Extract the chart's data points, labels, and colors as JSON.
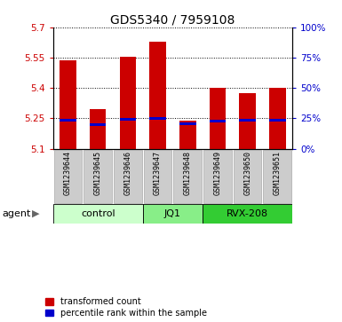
{
  "title": "GDS5340 / 7959108",
  "samples": [
    "GSM1239644",
    "GSM1239645",
    "GSM1239646",
    "GSM1239647",
    "GSM1239648",
    "GSM1239649",
    "GSM1239650",
    "GSM1239651"
  ],
  "bar_values": [
    5.535,
    5.295,
    5.555,
    5.63,
    5.24,
    5.4,
    5.375,
    5.4
  ],
  "bar_bottom": 5.1,
  "percentile_values": [
    5.24,
    5.22,
    5.245,
    5.25,
    5.225,
    5.235,
    5.24,
    5.24
  ],
  "ylim": [
    5.1,
    5.7
  ],
  "yticks_left": [
    5.1,
    5.25,
    5.4,
    5.55,
    5.7
  ],
  "yticks_right_vals": [
    0,
    25,
    50,
    75,
    100
  ],
  "yticks_right_pos": [
    5.1,
    5.25,
    5.4,
    5.55,
    5.7
  ],
  "bar_color": "#cc0000",
  "percentile_color": "#0000cc",
  "bar_width": 0.55,
  "groups": [
    {
      "label": "control",
      "indices": [
        0,
        1,
        2
      ],
      "color": "#ccffcc"
    },
    {
      "label": "JQ1",
      "indices": [
        3,
        4
      ],
      "color": "#88ee88"
    },
    {
      "label": "RVX-208",
      "indices": [
        5,
        6,
        7
      ],
      "color": "#33cc33"
    }
  ],
  "legend_red": "transformed count",
  "legend_blue": "percentile rank within the sample",
  "agent_label": "agent",
  "left_tick_color": "#cc0000",
  "right_tick_color": "#0000cc",
  "gray_box_color": "#cccccc",
  "gray_box_edge": "#aaaaaa"
}
